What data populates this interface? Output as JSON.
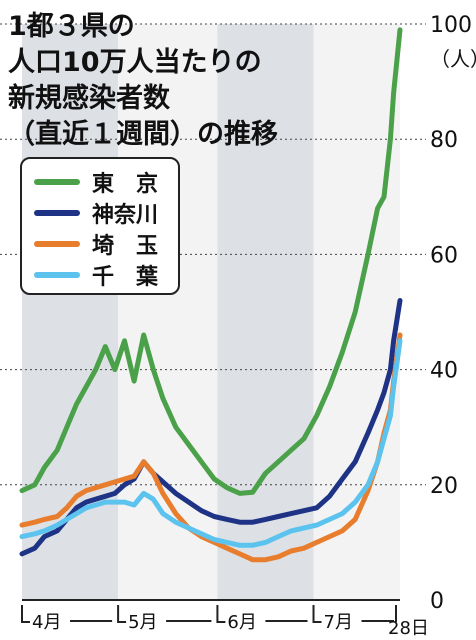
{
  "title_lines": [
    "1都３県の",
    "人口10万人当たりの",
    "新規感染者数",
    "（直近１週間）の推移"
  ],
  "chart_data": {
    "type": "line",
    "title": "1都３県の人口10万人当たりの新規感染者数（直近１週間）の推移",
    "y_unit": "（人）",
    "ylim": [
      0,
      100
    ],
    "y_ticks": [
      "0",
      "20",
      "40",
      "60",
      "80",
      "100"
    ],
    "x_labels": [
      "4月",
      "5月",
      "6月",
      "7月",
      "28日"
    ],
    "x_range": [
      "2021-04-01",
      "2021-07-28"
    ],
    "shaded_months": [
      "4月",
      "6月"
    ],
    "grid": "dotted horizontal lines at y ticks",
    "legend_position": "top-left",
    "x": [
      "2021-04-01",
      "2021-04-05",
      "2021-04-08",
      "2021-04-12",
      "2021-04-15",
      "2021-04-18",
      "2021-04-21",
      "2021-04-24",
      "2021-04-27",
      "2021-04-30",
      "2021-05-03",
      "2021-05-06",
      "2021-05-09",
      "2021-05-12",
      "2021-05-15",
      "2021-05-19",
      "2021-05-23",
      "2021-05-27",
      "2021-05-31",
      "2021-06-04",
      "2021-06-08",
      "2021-06-12",
      "2021-06-16",
      "2021-06-20",
      "2021-06-24",
      "2021-06-28",
      "2021-07-02",
      "2021-07-06",
      "2021-07-10",
      "2021-07-14",
      "2021-07-18",
      "2021-07-21",
      "2021-07-23",
      "2021-07-25",
      "2021-07-26",
      "2021-07-28"
    ],
    "series": [
      {
        "name": "東　京",
        "color": "#4aa14a",
        "values": [
          19,
          20,
          23,
          26,
          30,
          34,
          37,
          40,
          44,
          40,
          45,
          38,
          46,
          40,
          35,
          30,
          27,
          24,
          21,
          19.5,
          18.5,
          18.7,
          22,
          24,
          26,
          28,
          32,
          37,
          43,
          50,
          60,
          68,
          70,
          80,
          88,
          99
        ]
      },
      {
        "name": "神奈川",
        "color": "#1e3385",
        "values": [
          8,
          9,
          11,
          12,
          14,
          16,
          17,
          17.5,
          18,
          18.5,
          20,
          21,
          24,
          22,
          20.5,
          18.5,
          17,
          15.5,
          14.5,
          14,
          13.5,
          13.5,
          14,
          14.5,
          15,
          15.5,
          16,
          18,
          21,
          24,
          29,
          33,
          36,
          40,
          45,
          52
        ]
      },
      {
        "name": "埼　玉",
        "color": "#e87d2d",
        "values": [
          13,
          13.5,
          14,
          14.5,
          16,
          18,
          19,
          19.5,
          20,
          20.5,
          21,
          21.5,
          24,
          22,
          18.5,
          15,
          12.5,
          11,
          10,
          9,
          8,
          7,
          7,
          7.5,
          8.5,
          9,
          10,
          11,
          12,
          14,
          19,
          24,
          29,
          33,
          38,
          46
        ]
      },
      {
        "name": "千　葉",
        "color": "#5cc3ee",
        "values": [
          11,
          11.5,
          12,
          13,
          14,
          15,
          16,
          16.5,
          17,
          17,
          17,
          16.5,
          18.5,
          17.5,
          15,
          13.5,
          12.5,
          11.5,
          10.5,
          10,
          9.5,
          9.5,
          10,
          11,
          12,
          12.5,
          13,
          14,
          15,
          17,
          20,
          24,
          28,
          32,
          37,
          45
        ]
      }
    ]
  }
}
